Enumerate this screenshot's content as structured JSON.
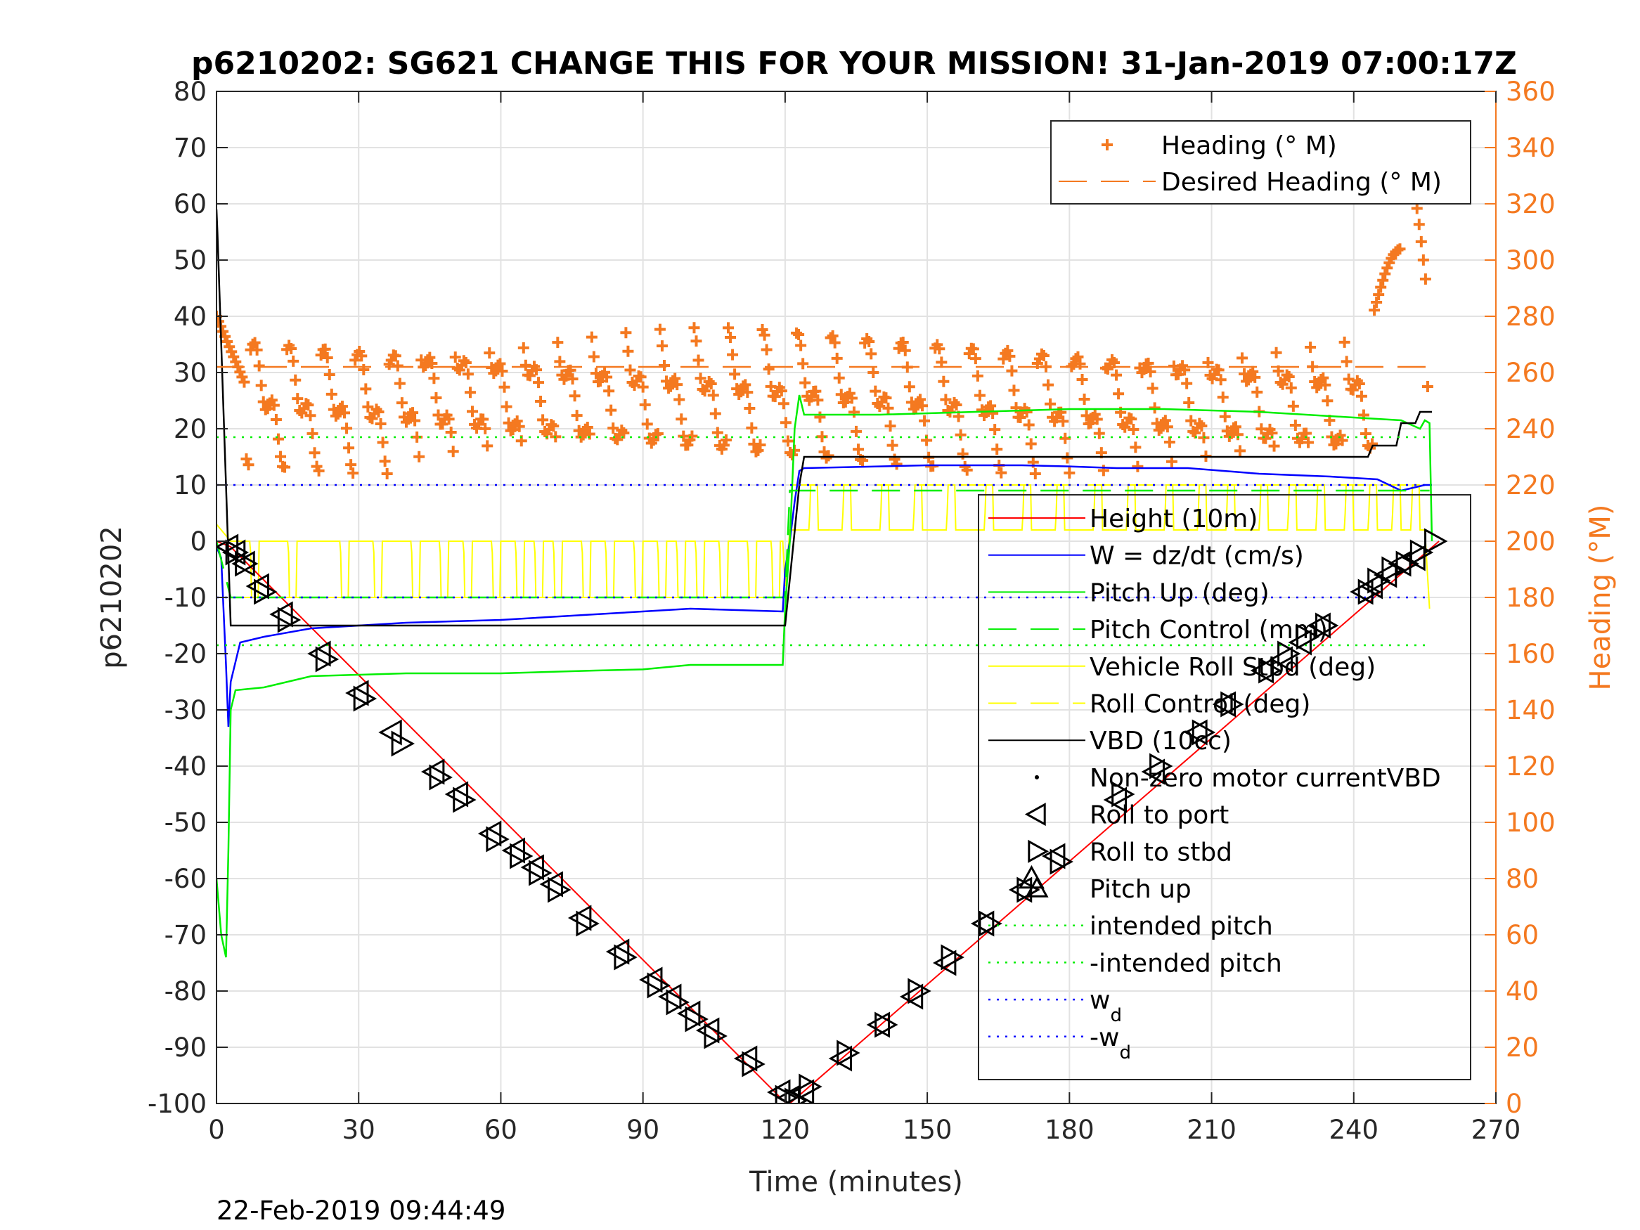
{
  "chart_data": {
    "type": "line",
    "title": "p6210202: SG621 CHANGE THIS FOR YOUR MISSION! 31-Jan-2019 07:00:17Z",
    "xlabel": "Time (minutes)",
    "ylabel": "p6210202",
    "y2label": "Heading (°M)",
    "xlim": [
      0,
      270
    ],
    "ylim": [
      -100,
      80
    ],
    "y2lim": [
      0,
      360
    ],
    "xticks": [
      0,
      30,
      60,
      90,
      120,
      150,
      180,
      210,
      240,
      270
    ],
    "yticks": [
      80,
      70,
      60,
      50,
      40,
      30,
      20,
      10,
      0,
      -10,
      -20,
      -30,
      -40,
      -50,
      -60,
      -70,
      -80,
      -90,
      -100
    ],
    "y2ticks": [
      360,
      340,
      320,
      300,
      280,
      260,
      240,
      220,
      200,
      180,
      160,
      140,
      120,
      100,
      80,
      60,
      40,
      20,
      0
    ],
    "grid": true,
    "footer": "22-Feb-2019 09:44:49",
    "colors": {
      "height": "#ff0000",
      "w": "#0000ff",
      "pitch": "#00ee00",
      "roll": "#ffff00",
      "vbd": "#000000",
      "heading": "#f47920",
      "axis_right": "#f47920"
    },
    "legend_right": [
      {
        "label": "Heading (° M)",
        "style": "plus",
        "color": "#f47920"
      },
      {
        "label": "Desired Heading (° M)",
        "style": "dash",
        "color": "#f47920"
      }
    ],
    "legend_left": [
      {
        "label": "Height (10m)",
        "style": "solid",
        "color": "#ff0000"
      },
      {
        "label": "W = dz/dt (cm/s)",
        "style": "solid",
        "color": "#0000ff"
      },
      {
        "label": "Pitch Up (deg)",
        "style": "solid",
        "color": "#00ee00"
      },
      {
        "label": "Pitch Control (mm)",
        "style": "dash",
        "color": "#00ee00"
      },
      {
        "label": "Vehicle Roll Stbd (deg)",
        "style": "solid",
        "color": "#ffff00"
      },
      {
        "label": "Roll Control (deg)",
        "style": "dash",
        "color": "#ffff00"
      },
      {
        "label": "VBD (10cc)",
        "style": "solid",
        "color": "#000000"
      },
      {
        "label": "Non-zero motor currentVBD",
        "style": "dot",
        "color": "#000000"
      },
      {
        "label": "Roll to port",
        "style": "tri-left",
        "color": "#000000"
      },
      {
        "label": "Roll to stbd",
        "style": "tri-right",
        "color": "#000000"
      },
      {
        "label": "Pitch up",
        "style": "tri-up",
        "color": "#000000"
      },
      {
        "label": "intended pitch",
        "style": "dotted",
        "color": "#00ee00"
      },
      {
        "label": "-intended pitch",
        "style": "dotted",
        "color": "#00ee00"
      },
      {
        "label": "w",
        "sub": "d",
        "style": "dotted",
        "color": "#0000ff"
      },
      {
        "label": "-w",
        "sub": "d",
        "style": "dotted",
        "color": "#0000ff"
      }
    ],
    "series": [
      {
        "name": "Height (10m)",
        "type": "line",
        "x": [
          0,
          3,
          120,
          121,
          258
        ],
        "y": [
          0,
          -1,
          -99.8,
          -100,
          0
        ]
      },
      {
        "name": "W = dz/dt (cm/s)",
        "type": "line",
        "x": [
          0,
          1,
          2,
          2.5,
          3,
          5,
          10,
          20,
          40,
          60,
          80,
          100,
          119.5,
          120,
          121,
          122,
          123,
          124,
          135,
          150,
          160,
          170,
          180,
          190,
          205,
          220,
          235,
          245,
          250,
          255,
          256.5
        ],
        "y": [
          -1,
          -3,
          -22,
          -33,
          -25,
          -18,
          -17,
          -15.5,
          -14.5,
          -14,
          -13,
          -12,
          -12.5,
          -5,
          0,
          7,
          12.5,
          13,
          13.2,
          13.5,
          13.5,
          13.5,
          13.3,
          13,
          13,
          12,
          11.5,
          11,
          9,
          10,
          10
        ]
      },
      {
        "name": "Pitch Up (deg)",
        "type": "line",
        "x": [
          0,
          1,
          2,
          2.5,
          3,
          4,
          10,
          20,
          40,
          60,
          80,
          90,
          100,
          119.5,
          120,
          121,
          122,
          123,
          124,
          140,
          160,
          180,
          200,
          220,
          240,
          250,
          254,
          255,
          256,
          256.5
        ],
        "y": [
          -60,
          -70,
          -74,
          -55,
          -30,
          -26.5,
          -26,
          -24,
          -23.5,
          -23.5,
          -23,
          -22.8,
          -22,
          -22,
          -12,
          0,
          20,
          26,
          22.5,
          22.5,
          23,
          23.5,
          23.5,
          23,
          22,
          21.5,
          20,
          21.5,
          21,
          0
        ]
      },
      {
        "name": "Pitch Control (mm)",
        "type": "step",
        "x": [
          0,
          3,
          120,
          121,
          256,
          256
        ],
        "y": [
          0,
          -10,
          -10,
          9,
          9,
          9
        ]
      },
      {
        "name": "VBD (10cc)",
        "type": "step",
        "x": [
          0,
          0.2,
          2,
          3,
          120,
          123,
          124,
          243,
          244,
          249,
          250,
          253,
          254,
          256.5
        ],
        "y": [
          59,
          55,
          10,
          -15,
          -15,
          10,
          15,
          15,
          17,
          17,
          21,
          21,
          23,
          23
        ]
      },
      {
        "name": "intended pitch",
        "type": "dotted",
        "x": [
          0,
          256
        ],
        "y": [
          18.5,
          18.5
        ]
      },
      {
        "name": "-intended pitch",
        "type": "dotted",
        "x": [
          0,
          256
        ],
        "y": [
          -18.5,
          -18.5
        ]
      },
      {
        "name": "wd",
        "type": "dotted",
        "x": [
          0,
          256
        ],
        "y": [
          10,
          10
        ]
      },
      {
        "name": "-wd",
        "type": "dotted",
        "x": [
          0,
          256
        ],
        "y": [
          -10,
          -10
        ]
      },
      {
        "name": "Roll to port",
        "type": "marker-tri-left",
        "x": [
          2.5,
          4,
          6,
          9,
          14,
          22,
          30,
          37,
          46,
          51,
          58,
          63,
          67,
          71,
          77,
          85,
          92,
          96,
          100,
          104,
          112,
          119,
          121,
          124,
          132,
          140,
          147,
          154,
          162,
          170,
          177,
          190,
          198,
          207,
          213,
          221,
          225,
          229,
          233,
          242,
          244,
          247,
          250,
          253
        ],
        "y": [
          -1,
          -2,
          -4,
          -8,
          -13,
          -20,
          -27,
          -34,
          -41,
          -45,
          -52,
          -55,
          -58,
          -61,
          -67,
          -73,
          -78,
          -81,
          -84,
          -87,
          -92,
          -98,
          -99,
          -98,
          -92,
          -86,
          -81,
          -75,
          -68,
          -62,
          -56,
          -46,
          -41,
          -34,
          -29,
          -23,
          -21,
          -18,
          -15,
          -9,
          -8,
          -6,
          -4,
          -3
        ]
      },
      {
        "name": "Roll to stbd",
        "type": "marker-tri-right",
        "x": [
          4,
          6,
          10,
          15,
          23,
          31,
          39,
          47,
          52,
          59,
          64,
          68,
          72,
          78,
          86,
          93,
          97,
          101,
          105,
          113,
          120,
          122,
          125,
          133,
          141,
          148,
          155,
          163,
          171,
          178,
          191,
          199,
          208,
          214,
          222,
          226,
          230,
          234,
          243,
          245,
          248,
          251,
          254,
          257
        ],
        "y": [
          -2,
          -4,
          -9,
          -14,
          -21,
          -28,
          -36,
          -42,
          -46,
          -53,
          -56,
          -59,
          -62,
          -68,
          -74,
          -79,
          -82,
          -85,
          -88,
          -93,
          -99,
          -99.5,
          -97,
          -91,
          -86,
          -80,
          -74,
          -68,
          -62,
          -57,
          -45,
          -40,
          -34,
          -29,
          -23,
          -20,
          -17,
          -15,
          -9,
          -7,
          -5,
          -4,
          -2,
          0
        ]
      },
      {
        "name": "Pitch up",
        "type": "marker-tri-up",
        "x": [
          172
        ],
        "y": [
          -60
        ]
      },
      {
        "name": "Desired Heading (° M)",
        "type": "dash-right",
        "x": [
          0,
          256
        ],
        "y": [
          262,
          262
        ]
      }
    ]
  }
}
